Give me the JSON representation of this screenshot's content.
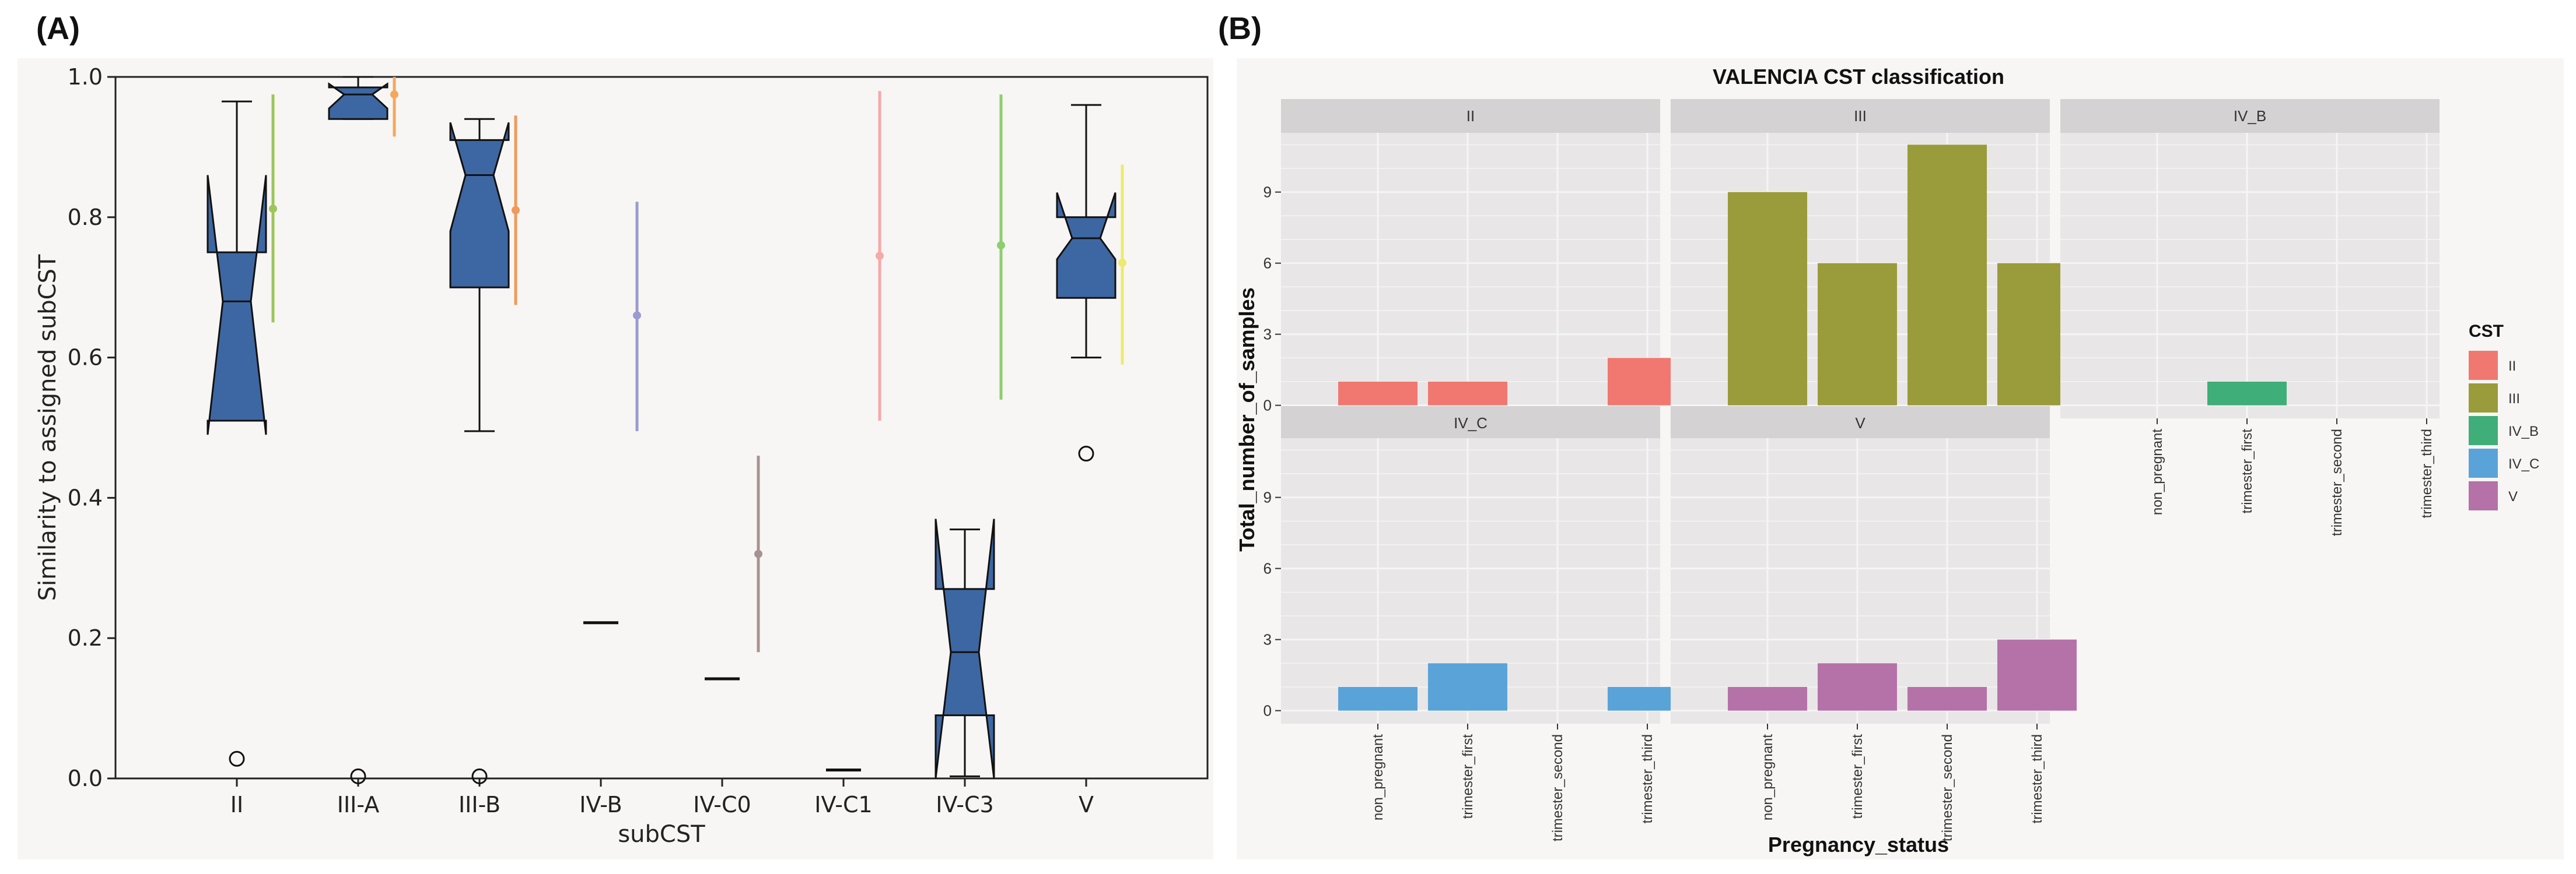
{
  "panel_a_label": "(A)",
  "panel_b_label": "(B)",
  "chart_data": [
    {
      "type": "boxplot",
      "panel": "(A)",
      "xlabel": "subCST",
      "ylabel": "Similarity to assigned subCST",
      "ylim": [
        0.0,
        1.0
      ],
      "yticks": [
        "0.0",
        "0.2",
        "0.4",
        "0.6",
        "0.8",
        "1.0"
      ],
      "categories": [
        "II",
        "III-A",
        "III-B",
        "IV-B",
        "IV-C0",
        "IV-C1",
        "IV-C3",
        "V"
      ],
      "box_color": "#3d67a3",
      "boxes": [
        {
          "label": "II",
          "whisker_low": 0.51,
          "q1": 0.51,
          "median": 0.68,
          "q3": 0.75,
          "whisker_high": 0.965,
          "notch_low": 0.49,
          "notch_high": 0.86,
          "outliers": [
            0.028
          ]
        },
        {
          "label": "III-A",
          "whisker_low": 0.94,
          "q1": 0.94,
          "median": 0.975,
          "q3": 0.985,
          "whisker_high": 1.0,
          "notch_low": 0.955,
          "notch_high": 0.99,
          "outliers": [
            0.003
          ]
        },
        {
          "label": "III-B",
          "whisker_low": 0.495,
          "q1": 0.7,
          "median": 0.86,
          "q3": 0.91,
          "whisker_high": 0.94,
          "notch_low": 0.78,
          "notch_high": 0.935,
          "outliers": [
            0.003
          ]
        },
        {
          "label": "IV-B",
          "whisker_low": 0.222,
          "q1": 0.222,
          "median": 0.222,
          "q3": 0.222,
          "whisker_high": 0.222,
          "outliers": []
        },
        {
          "label": "IV-C0",
          "whisker_low": 0.142,
          "q1": 0.142,
          "median": 0.142,
          "q3": 0.142,
          "whisker_high": 0.142,
          "outliers": []
        },
        {
          "label": "IV-C1",
          "whisker_low": 0.012,
          "q1": 0.012,
          "median": 0.012,
          "q3": 0.012,
          "whisker_high": 0.012,
          "outliers": []
        },
        {
          "label": "IV-C3",
          "whisker_low": 0.003,
          "q1": 0.09,
          "median": 0.18,
          "q3": 0.27,
          "whisker_high": 0.355,
          "notch_low": 0.0,
          "notch_high": 0.37,
          "outliers": []
        },
        {
          "label": "V",
          "whisker_low": 0.6,
          "q1": 0.685,
          "median": 0.77,
          "q3": 0.8,
          "whisker_high": 0.96,
          "notch_low": 0.74,
          "notch_high": 0.835,
          "outliers": [
            0.463
          ]
        }
      ],
      "mean_intervals": [
        {
          "label": "II",
          "color": "#9cc65a",
          "low": 0.65,
          "mean": 0.812,
          "high": 0.975
        },
        {
          "label": "III-A",
          "color": "#f5a85a",
          "low": 0.915,
          "mean": 0.975,
          "high": 1.0
        },
        {
          "label": "III-B",
          "color": "#ef9a5a",
          "low": 0.675,
          "mean": 0.81,
          "high": 0.945
        },
        {
          "label": "IV-B",
          "color": "#9b9bd2",
          "low": 0.495,
          "mean": 0.66,
          "high": 0.822
        },
        {
          "label": "IV-C0",
          "color": "#a89290",
          "low": 0.18,
          "mean": 0.32,
          "high": 0.46
        },
        {
          "label": "IV-C1",
          "color": "#f7a8aa",
          "low": 0.51,
          "mean": 0.745,
          "high": 0.98
        },
        {
          "label": "IV-C3",
          "color": "#8ccf6e",
          "low": 0.54,
          "mean": 0.76,
          "high": 0.975
        },
        {
          "label": "V",
          "color": "#eeea6a",
          "low": 0.59,
          "mean": 0.735,
          "high": 0.875
        }
      ]
    },
    {
      "type": "bar",
      "panel": "(B)",
      "title": "VALENCIA CST classification",
      "xlabel": "Pregnancy_status",
      "ylabel": "Total_number_of_samples",
      "yticks": [
        "0",
        "3",
        "6",
        "9"
      ],
      "ylim": [
        0,
        11.5
      ],
      "categories": [
        "non_pregnant",
        "trimester_first",
        "trimester_second",
        "trimester_third"
      ],
      "facets": [
        {
          "label": "II",
          "color": "#f07870",
          "values": [
            1,
            1,
            0,
            2
          ]
        },
        {
          "label": "III",
          "color": "#9a9b3a",
          "values": [
            9,
            6,
            11,
            6
          ]
        },
        {
          "label": "IV_B",
          "color": "#3fae78",
          "values": [
            0,
            1,
            0,
            0
          ]
        },
        {
          "label": "IV_C",
          "color": "#5aa3d8",
          "values": [
            1,
            2,
            0,
            1
          ]
        },
        {
          "label": "V",
          "color": "#b572a8",
          "values": [
            1,
            2,
            1,
            3
          ]
        }
      ],
      "legend": {
        "title": "CST",
        "position": "right",
        "entries": [
          {
            "label": "II",
            "color": "#f07870"
          },
          {
            "label": "III",
            "color": "#9a9b3a"
          },
          {
            "label": "IV_B",
            "color": "#3fae78"
          },
          {
            "label": "IV_C",
            "color": "#5aa3d8"
          },
          {
            "label": "V",
            "color": "#b572a8"
          }
        ]
      }
    }
  ]
}
